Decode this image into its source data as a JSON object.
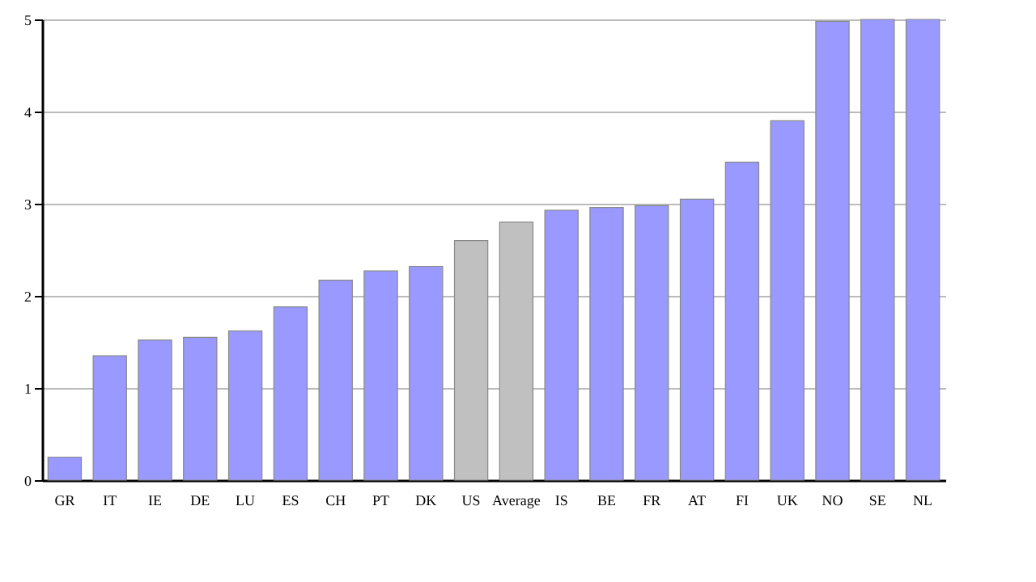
{
  "chart_data": {
    "type": "bar",
    "categories": [
      "GR",
      "IT",
      "IE",
      "DE",
      "LU",
      "ES",
      "CH",
      "PT",
      "DK",
      "US",
      "Average",
      "IS",
      "BE",
      "FR",
      "AT",
      "FI",
      "UK",
      "NO",
      "SE",
      "NL"
    ],
    "values": [
      0.25,
      1.35,
      1.52,
      1.55,
      1.62,
      1.88,
      2.17,
      2.27,
      2.32,
      2.6,
      2.8,
      2.93,
      2.96,
      2.98,
      3.05,
      3.45,
      3.9,
      4.98,
      5,
      5
    ],
    "colors": [
      "#9999ff",
      "#9999ff",
      "#9999ff",
      "#9999ff",
      "#9999ff",
      "#9999ff",
      "#9999ff",
      "#9999ff",
      "#9999ff",
      "#c0c0c0",
      "#c0c0c0",
      "#9999ff",
      "#9999ff",
      "#9999ff",
      "#9999ff",
      "#9999ff",
      "#9999ff",
      "#9999ff",
      "#9999ff",
      "#9999ff"
    ],
    "ylim": [
      0,
      5
    ],
    "yticks": [
      0,
      1,
      2,
      3,
      4,
      5
    ],
    "grid": "y"
  }
}
